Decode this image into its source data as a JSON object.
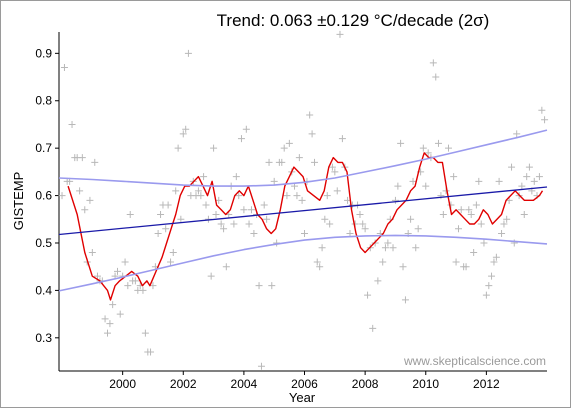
{
  "chart_data": {
    "type": "scatter",
    "title": "Trend: 0.063 ±0.129 °C/decade (2σ)",
    "xlabel": "Year",
    "ylabel": "GISTEMP",
    "watermark": "www.skepticalscience.com",
    "xlim": [
      1997.9,
      2014.0
    ],
    "ylim": [
      0.23,
      0.945
    ],
    "x_ticks": [
      2000,
      2002,
      2004,
      2006,
      2008,
      2010,
      2012
    ],
    "y_ticks": [
      0.3,
      0.4,
      0.5,
      0.6,
      0.7,
      0.8,
      0.9
    ],
    "grid": false,
    "colors": {
      "points": "#b8b8b8",
      "moving_average": "#e00000",
      "trend": "#1a1aa8",
      "confidence": "#9a9aee",
      "watermark": "#9a9a9a",
      "axis": "#000000"
    },
    "series": [
      {
        "kind": "monthly_points",
        "marker": "plus",
        "x": [
          1998.0,
          1998.08,
          1998.17,
          1998.25,
          1998.33,
          1998.42,
          1998.5,
          1998.58,
          1998.67,
          1998.75,
          1998.83,
          1998.92,
          1999.0,
          1999.08,
          1999.17,
          1999.25,
          1999.33,
          1999.42,
          1999.5,
          1999.58,
          1999.67,
          1999.75,
          1999.83,
          1999.92,
          2000.0,
          2000.08,
          2000.17,
          2000.25,
          2000.33,
          2000.42,
          2000.5,
          2000.58,
          2000.67,
          2000.75,
          2000.83,
          2000.92,
          2001.0,
          2001.08,
          2001.17,
          2001.25,
          2001.33,
          2001.42,
          2001.5,
          2001.58,
          2001.67,
          2001.75,
          2001.83,
          2001.92,
          2002.0,
          2002.08,
          2002.17,
          2002.25,
          2002.33,
          2002.42,
          2002.5,
          2002.58,
          2002.67,
          2002.75,
          2002.83,
          2002.92,
          2003.0,
          2003.08,
          2003.17,
          2003.25,
          2003.33,
          2003.42,
          2003.5,
          2003.58,
          2003.67,
          2003.75,
          2003.83,
          2003.92,
          2004.0,
          2004.08,
          2004.17,
          2004.25,
          2004.33,
          2004.42,
          2004.5,
          2004.58,
          2004.67,
          2004.75,
          2004.83,
          2004.92,
          2005.0,
          2005.08,
          2005.17,
          2005.25,
          2005.33,
          2005.42,
          2005.5,
          2005.58,
          2005.67,
          2005.75,
          2005.83,
          2005.92,
          2006.0,
          2006.08,
          2006.17,
          2006.25,
          2006.33,
          2006.42,
          2006.5,
          2006.58,
          2006.67,
          2006.75,
          2006.83,
          2006.92,
          2007.0,
          2007.08,
          2007.17,
          2007.25,
          2007.33,
          2007.42,
          2007.5,
          2007.58,
          2007.67,
          2007.75,
          2007.83,
          2007.92,
          2008.0,
          2008.08,
          2008.17,
          2008.25,
          2008.33,
          2008.42,
          2008.5,
          2008.58,
          2008.67,
          2008.75,
          2008.83,
          2008.92,
          2009.0,
          2009.08,
          2009.17,
          2009.25,
          2009.33,
          2009.42,
          2009.5,
          2009.58,
          2009.67,
          2009.75,
          2009.83,
          2009.92,
          2010.0,
          2010.08,
          2010.17,
          2010.25,
          2010.33,
          2010.42,
          2010.5,
          2010.58,
          2010.67,
          2010.75,
          2010.83,
          2010.92,
          2011.0,
          2011.08,
          2011.17,
          2011.25,
          2011.33,
          2011.42,
          2011.5,
          2011.58,
          2011.67,
          2011.75,
          2011.83,
          2011.92,
          2012.0,
          2012.08,
          2012.17,
          2012.25,
          2012.33,
          2012.42,
          2012.5,
          2012.58,
          2012.67,
          2012.75,
          2012.83,
          2012.92,
          2013.0,
          2013.08,
          2013.17,
          2013.25,
          2013.33,
          2013.42,
          2013.5,
          2013.58,
          2013.67,
          2013.75,
          2013.83,
          2013.92
        ],
        "y": [
          0.6,
          0.87,
          0.63,
          0.63,
          0.75,
          0.68,
          0.68,
          0.61,
          0.68,
          0.57,
          0.46,
          0.59,
          0.48,
          0.67,
          0.43,
          0.42,
          0.42,
          0.34,
          0.31,
          0.33,
          0.37,
          0.43,
          0.44,
          0.35,
          0.43,
          0.46,
          0.41,
          0.56,
          0.42,
          0.42,
          0.4,
          0.41,
          0.4,
          0.31,
          0.27,
          0.27,
          0.41,
          0.45,
          0.52,
          0.56,
          0.58,
          0.53,
          0.58,
          0.46,
          0.48,
          0.61,
          0.7,
          0.55,
          0.73,
          0.74,
          0.9,
          0.6,
          0.63,
          0.6,
          0.61,
          0.6,
          0.64,
          0.58,
          0.55,
          0.43,
          0.7,
          0.56,
          0.59,
          0.54,
          0.53,
          0.45,
          0.56,
          0.62,
          0.54,
          0.64,
          0.6,
          0.72,
          0.57,
          0.74,
          0.54,
          0.57,
          0.52,
          0.56,
          0.41,
          0.24,
          0.58,
          0.55,
          0.67,
          0.41,
          0.63,
          0.5,
          0.67,
          0.67,
          0.7,
          0.6,
          0.71,
          0.65,
          0.62,
          0.6,
          0.68,
          0.59,
          0.52,
          0.63,
          0.77,
          0.73,
          0.67,
          0.46,
          0.45,
          0.49,
          0.55,
          0.6,
          0.54,
          0.66,
          0.65,
          0.61,
          0.94,
          0.72,
          0.66,
          0.59,
          0.52,
          0.58,
          0.54,
          0.58,
          0.56,
          0.54,
          0.53,
          0.39,
          0.49,
          0.32,
          0.5,
          0.42,
          0.52,
          0.46,
          0.49,
          0.5,
          0.55,
          0.49,
          0.59,
          0.62,
          0.71,
          0.45,
          0.38,
          0.52,
          0.55,
          0.63,
          0.49,
          0.53,
          0.65,
          0.7,
          0.62,
          0.69,
          0.68,
          0.88,
          0.85,
          0.71,
          0.6,
          0.56,
          0.61,
          0.7,
          0.58,
          0.64,
          0.46,
          0.53,
          0.57,
          0.45,
          0.45,
          0.57,
          0.56,
          0.48,
          0.58,
          0.63,
          0.54,
          0.5,
          0.39,
          0.41,
          0.43,
          0.46,
          0.47,
          0.63,
          0.52,
          0.54,
          0.55,
          0.59,
          0.66,
          0.5,
          0.73,
          0.6,
          0.62,
          0.56,
          0.64,
          0.66,
          0.61,
          0.63,
          0.6,
          0.64,
          0.78,
          0.76
        ]
      },
      {
        "kind": "moving_average",
        "x": [
          1998.2,
          1998.5,
          1998.75,
          1999.0,
          1999.25,
          1999.5,
          1999.6,
          1999.75,
          1999.9,
          2000.1,
          2000.3,
          2000.5,
          2000.65,
          2000.8,
          2000.9,
          2001.1,
          2001.3,
          2001.45,
          2001.6,
          2001.75,
          2001.9,
          2002.05,
          2002.2,
          2002.35,
          2002.5,
          2002.65,
          2002.8,
          2002.95,
          2003.1,
          2003.25,
          2003.4,
          2003.55,
          2003.7,
          2003.85,
          2004.0,
          2004.15,
          2004.3,
          2004.45,
          2004.6,
          2004.75,
          2004.9,
          2005.05,
          2005.2,
          2005.35,
          2005.5,
          2005.65,
          2005.8,
          2005.95,
          2006.1,
          2006.3,
          2006.5,
          2006.65,
          2006.8,
          2006.95,
          2007.1,
          2007.25,
          2007.4,
          2007.55,
          2007.7,
          2007.85,
          2008.0,
          2008.15,
          2008.3,
          2008.45,
          2008.6,
          2008.75,
          2008.9,
          2009.05,
          2009.2,
          2009.35,
          2009.5,
          2009.65,
          2009.8,
          2009.95,
          2010.1,
          2010.25,
          2010.4,
          2010.55,
          2010.7,
          2010.85,
          2011.0,
          2011.15,
          2011.3,
          2011.45,
          2011.6,
          2011.75,
          2011.9,
          2012.05,
          2012.2,
          2012.35,
          2012.5,
          2012.65,
          2012.8,
          2012.95,
          2013.1,
          2013.25,
          2013.4,
          2013.55,
          2013.75,
          2013.85
        ],
        "y": [
          0.62,
          0.56,
          0.48,
          0.43,
          0.42,
          0.4,
          0.38,
          0.41,
          0.42,
          0.43,
          0.44,
          0.43,
          0.41,
          0.42,
          0.41,
          0.44,
          0.47,
          0.5,
          0.53,
          0.56,
          0.6,
          0.62,
          0.62,
          0.63,
          0.64,
          0.62,
          0.6,
          0.63,
          0.58,
          0.57,
          0.56,
          0.57,
          0.6,
          0.61,
          0.6,
          0.62,
          0.59,
          0.56,
          0.55,
          0.53,
          0.52,
          0.53,
          0.57,
          0.62,
          0.64,
          0.66,
          0.65,
          0.64,
          0.61,
          0.6,
          0.59,
          0.61,
          0.66,
          0.68,
          0.67,
          0.67,
          0.65,
          0.57,
          0.52,
          0.49,
          0.48,
          0.49,
          0.5,
          0.51,
          0.52,
          0.54,
          0.55,
          0.57,
          0.58,
          0.59,
          0.61,
          0.62,
          0.66,
          0.69,
          0.68,
          0.68,
          0.67,
          0.67,
          0.61,
          0.56,
          0.57,
          0.56,
          0.55,
          0.54,
          0.54,
          0.55,
          0.57,
          0.56,
          0.54,
          0.55,
          0.56,
          0.59,
          0.6,
          0.61,
          0.6,
          0.59,
          0.59,
          0.59,
          0.6,
          0.61
        ]
      },
      {
        "kind": "trend",
        "x": [
          1997.9,
          2014.0
        ],
        "y": [
          0.518,
          0.618
        ]
      },
      {
        "kind": "confidence_upper",
        "x": [
          1997.9,
          1999.0,
          2000.0,
          2001.0,
          2002.0,
          2003.0,
          2004.0,
          2005.0,
          2006.0,
          2007.0,
          2008.0,
          2009.0,
          2010.0,
          2011.0,
          2012.0,
          2013.0,
          2014.0
        ],
        "y": [
          0.637,
          0.634,
          0.63,
          0.626,
          0.622,
          0.62,
          0.62,
          0.622,
          0.628,
          0.637,
          0.65,
          0.663,
          0.677,
          0.692,
          0.707,
          0.722,
          0.738
        ]
      },
      {
        "kind": "confidence_lower",
        "x": [
          1997.9,
          1999.0,
          2000.0,
          2001.0,
          2002.0,
          2003.0,
          2004.0,
          2005.0,
          2006.0,
          2007.0,
          2008.0,
          2009.0,
          2010.0,
          2011.0,
          2012.0,
          2013.0,
          2014.0
        ],
        "y": [
          0.399,
          0.414,
          0.428,
          0.443,
          0.458,
          0.473,
          0.486,
          0.497,
          0.506,
          0.512,
          0.515,
          0.516,
          0.515,
          0.512,
          0.508,
          0.503,
          0.498
        ]
      }
    ]
  }
}
